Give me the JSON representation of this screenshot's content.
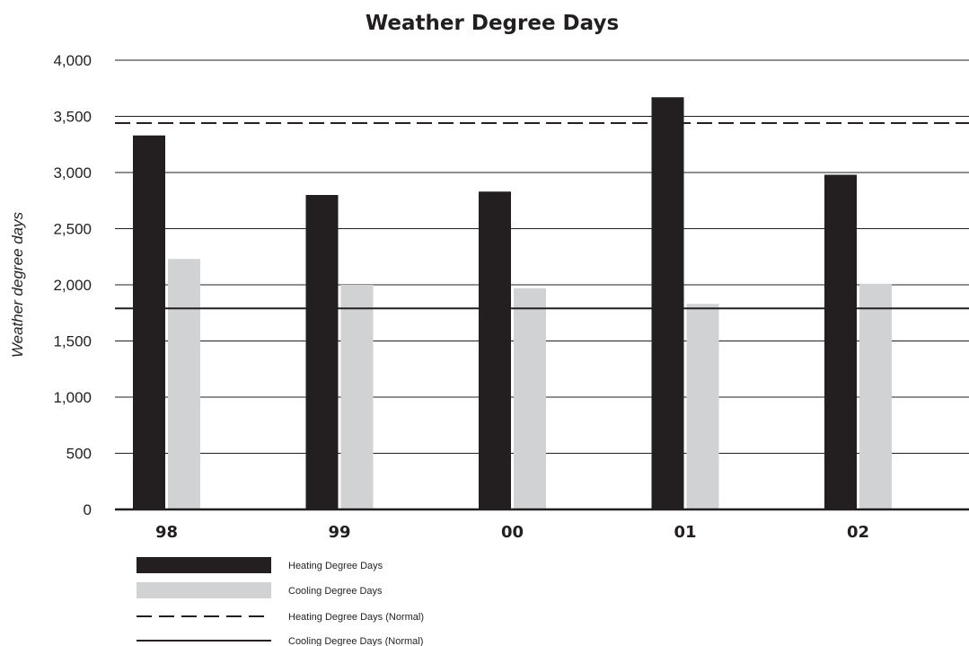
{
  "chart_data": {
    "type": "bar",
    "title": "Weather Degree Days",
    "xlabel": "",
    "ylabel": "Weather degree days",
    "categories": [
      "98",
      "99",
      "00",
      "01",
      "02"
    ],
    "series": [
      {
        "name": "Heating Degree Days",
        "values": [
          3330,
          2800,
          2830,
          3670,
          2980
        ],
        "color": "#231f20"
      },
      {
        "name": "Cooling Degree Days",
        "values": [
          2230,
          2000,
          1970,
          1830,
          2010
        ],
        "color": "#d1d2d4"
      }
    ],
    "reference_lines": [
      {
        "name": "Heating Degree Days (Normal)",
        "value": 3440,
        "style": "dashed",
        "color": "#231f20"
      },
      {
        "name": "Cooling Degree Days (Normal)",
        "value": 1790,
        "style": "solid",
        "color": "#231f20"
      }
    ],
    "ylim": [
      0,
      4000
    ],
    "yticks": [
      0,
      500,
      1000,
      1500,
      2000,
      2500,
      3000,
      3500,
      4000
    ],
    "ytick_labels": [
      "0",
      "500",
      "1,000",
      "1,500",
      "2,000",
      "2,500",
      "3,000",
      "3,500",
      "4,000"
    ],
    "grid": true,
    "legend_position": "bottom-left"
  }
}
